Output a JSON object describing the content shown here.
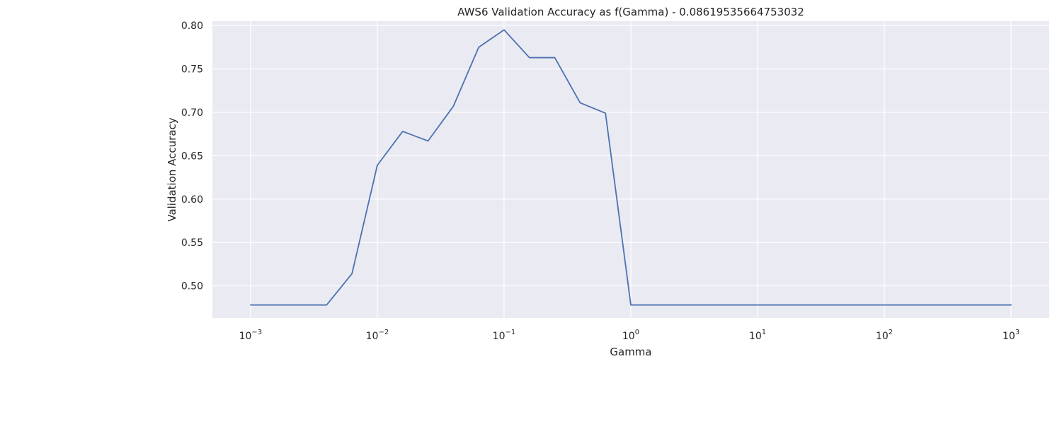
{
  "chart_data": {
    "type": "line",
    "title": "AWS6 Validation Accuracy as f(Gamma) - 0.08619535664753032",
    "xlabel": "Gamma",
    "ylabel": "Validation Accuracy",
    "x_scale": "log",
    "xlim": [
      0.0005,
      2000
    ],
    "ylim": [
      0.463,
      0.805
    ],
    "grid": true,
    "x_ticks": [
      {
        "value": 0.001,
        "base": "10",
        "exp": "−3"
      },
      {
        "value": 0.01,
        "base": "10",
        "exp": "−2"
      },
      {
        "value": 0.1,
        "base": "10",
        "exp": "−1"
      },
      {
        "value": 1,
        "base": "10",
        "exp": "0"
      },
      {
        "value": 10,
        "base": "10",
        "exp": "1"
      },
      {
        "value": 100,
        "base": "10",
        "exp": "2"
      },
      {
        "value": 1000,
        "base": "10",
        "exp": "3"
      }
    ],
    "y_ticks": [
      {
        "value": 0.5,
        "label": "0.50"
      },
      {
        "value": 0.55,
        "label": "0.55"
      },
      {
        "value": 0.6,
        "label": "0.60"
      },
      {
        "value": 0.65,
        "label": "0.65"
      },
      {
        "value": 0.7,
        "label": "0.70"
      },
      {
        "value": 0.75,
        "label": "0.75"
      },
      {
        "value": 0.8,
        "label": "0.80"
      }
    ],
    "series": [
      {
        "color": "#4c72b0",
        "x": [
          0.001,
          0.001585,
          0.002512,
          0.003981,
          0.00631,
          0.01,
          0.01585,
          0.02512,
          0.03981,
          0.0631,
          0.1,
          0.1585,
          0.2512,
          0.3981,
          0.631,
          1,
          1.585,
          2.512,
          3.981,
          6.31,
          10,
          15.85,
          25.12,
          39.81,
          63.1,
          100,
          158.5,
          251.2,
          398.1,
          631,
          1000
        ],
        "y": [
          0.478,
          0.478,
          0.478,
          0.478,
          0.514,
          0.639,
          0.678,
          0.667,
          0.707,
          0.775,
          0.795,
          0.763,
          0.763,
          0.711,
          0.699,
          0.478,
          0.478,
          0.478,
          0.478,
          0.478,
          0.478,
          0.478,
          0.478,
          0.478,
          0.478,
          0.478,
          0.478,
          0.478,
          0.478,
          0.478,
          0.478
        ]
      }
    ]
  },
  "colors": {
    "plot_background": "#eaeaf2",
    "grid": "#ffffff",
    "line": "#4c72b0",
    "text": "#262626"
  }
}
